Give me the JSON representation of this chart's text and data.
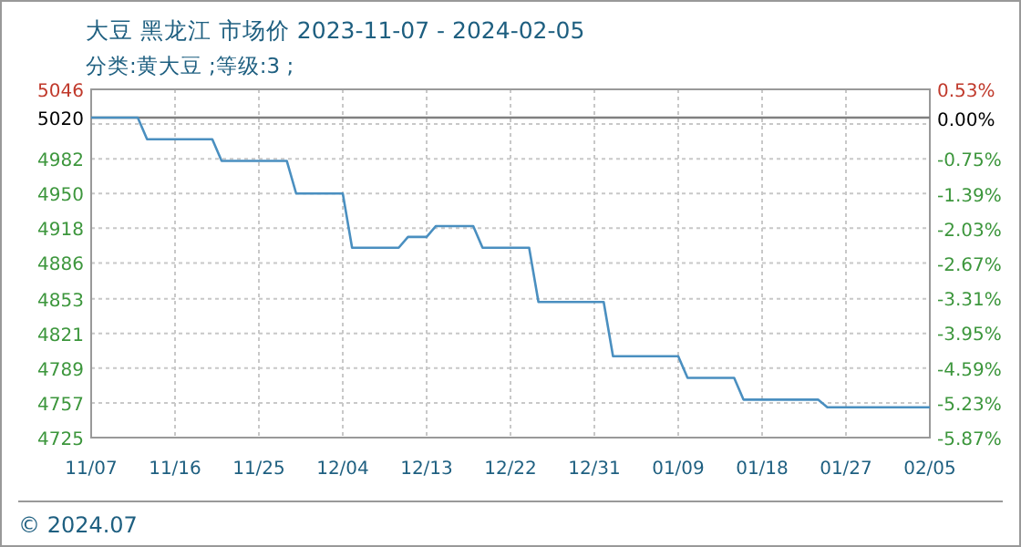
{
  "chart_data": {
    "type": "line",
    "title": "大豆 黑龙江 市场价 2023-11-07 - 2024-02-05",
    "subtitle": "分类:黄大豆 ;等级:3 ;",
    "annotations": [
      "© 2024.07"
    ],
    "series": [
      {
        "color": "#4a8fc0",
        "x": [
          "2023-11-07",
          "2023-11-12",
          "2023-11-13",
          "2023-11-20",
          "2023-11-21",
          "2023-11-28",
          "2023-11-29",
          "2023-12-04",
          "2023-12-05",
          "2023-12-10",
          "2023-12-11",
          "2023-12-13",
          "2023-12-14",
          "2023-12-18",
          "2023-12-19",
          "2023-12-24",
          "2023-12-25",
          "2024-01-01",
          "2024-01-02",
          "2024-01-09",
          "2024-01-10",
          "2024-01-15",
          "2024-01-16",
          "2024-01-24",
          "2024-01-25",
          "2024-02-05"
        ],
        "values": [
          5020,
          5020,
          5000,
          5000,
          4980,
          4980,
          4950,
          4950,
          4900,
          4900,
          4910,
          4910,
          4920,
          4920,
          4900,
          4900,
          4850,
          4850,
          4800,
          4800,
          4780,
          4780,
          4760,
          4760,
          4753,
          4753
        ]
      }
    ],
    "xlim": [
      "2023-11-07",
      "2024-02-05"
    ],
    "xticks": [
      {
        "value": "2023-11-07",
        "label": "11/07"
      },
      {
        "value": "2023-11-16",
        "label": "11/16"
      },
      {
        "value": "2023-11-25",
        "label": "11/25"
      },
      {
        "value": "2023-12-04",
        "label": "12/04"
      },
      {
        "value": "2023-12-13",
        "label": "12/13"
      },
      {
        "value": "2023-12-22",
        "label": "12/22"
      },
      {
        "value": "2023-12-31",
        "label": "12/31"
      },
      {
        "value": "2024-01-09",
        "label": "01/09"
      },
      {
        "value": "2024-01-18",
        "label": "01/18"
      },
      {
        "value": "2024-01-27",
        "label": "01/27"
      },
      {
        "value": "2024-02-05",
        "label": "02/05"
      }
    ],
    "ylim": [
      4725,
      5046
    ],
    "yticks": [
      4725,
      4757,
      4789,
      4821,
      4853,
      4886,
      4918,
      4950,
      4982,
      {
        "value": 5014,
        "label": null
      },
      5046
    ],
    "y2lim": [
      -5.87,
      0.53
    ],
    "y2ticks": [
      {
        "value": -5.87,
        "label": "-5.87%"
      },
      {
        "value": -5.23,
        "label": "-5.23%"
      },
      {
        "value": -4.59,
        "label": "-4.59%"
      },
      {
        "value": -3.95,
        "label": "-3.95%"
      },
      {
        "value": -3.31,
        "label": "-3.31%"
      },
      {
        "value": -2.67,
        "label": "-2.67%"
      },
      {
        "value": -2.03,
        "label": "-2.03%"
      },
      {
        "value": -1.39,
        "label": "-1.39%"
      },
      {
        "value": -0.75,
        "label": "-0.75%"
      },
      {
        "value": -0.11,
        "label": null
      },
      {
        "value": 0,
        "label": "0.00%"
      },
      {
        "value": 0.53,
        "label": "0.53%"
      }
    ],
    "ref_lines": [
      {
        "axis": "y",
        "value": 5020,
        "label": "5020",
        "color": "#808080"
      }
    ],
    "grid": true,
    "marker": "none",
    "line_style": "solid"
  }
}
